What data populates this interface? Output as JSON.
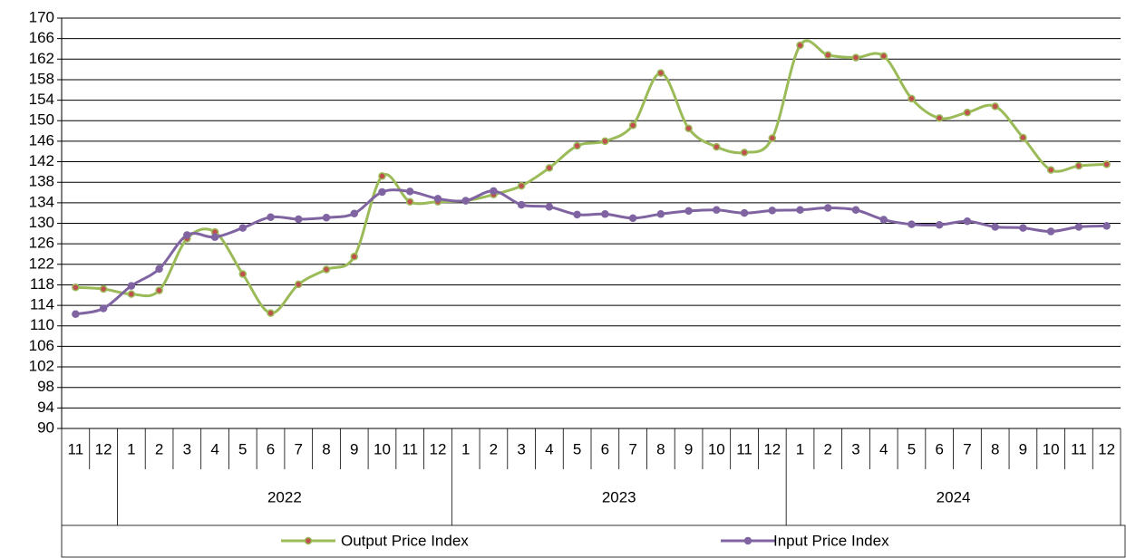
{
  "chart_data": {
    "type": "line",
    "categories": [
      "11",
      "12",
      "1",
      "2",
      "3",
      "4",
      "5",
      "6",
      "7",
      "8",
      "9",
      "10",
      "11",
      "12",
      "1",
      "2",
      "3",
      "4",
      "5",
      "6",
      "7",
      "8",
      "9",
      "10",
      "11",
      "12",
      "1",
      "2",
      "3",
      "4",
      "5",
      "6",
      "7",
      "8",
      "9",
      "10",
      "11",
      "12"
    ],
    "category_groups": [
      {
        "label": null,
        "size": 2
      },
      {
        "label": "2022",
        "size": 12
      },
      {
        "label": "2023",
        "size": 12
      },
      {
        "label": "2024",
        "size": 12
      }
    ],
    "series": [
      {
        "name": "Output Price Index",
        "color": "#9bbb59",
        "marker_color": "#c0504d",
        "values": [
          117.5,
          117.2,
          116.2,
          116.9,
          127.0,
          128.3,
          120.1,
          112.5,
          118.1,
          121.0,
          123.5,
          139.2,
          134.2,
          134.2,
          134.4,
          135.6,
          137.3,
          140.8,
          145.1,
          146.0,
          149.1,
          159.3,
          148.5,
          144.9,
          143.8,
          146.6,
          164.7,
          162.8,
          162.3,
          162.6,
          154.3,
          150.5,
          151.6,
          152.8,
          146.7,
          140.4,
          141.2,
          141.5
        ]
      },
      {
        "name": "Input Price Index",
        "color": "#8064a2",
        "marker_color": "#8064a2",
        "values": [
          112.3,
          113.4,
          117.8,
          121.1,
          127.7,
          127.3,
          129.1,
          131.2,
          130.8,
          131.1,
          131.9,
          136.1,
          136.2,
          134.8,
          134.4,
          136.3,
          133.6,
          133.2,
          131.7,
          131.8,
          131.0,
          131.8,
          132.4,
          132.6,
          132.0,
          132.5,
          132.6,
          133.0,
          132.6,
          130.7,
          129.8,
          129.7,
          130.4,
          129.3,
          129.1,
          128.4,
          129.3,
          129.5
        ]
      }
    ],
    "ylim": [
      90,
      170
    ],
    "yticks": [
      90,
      94,
      98,
      102,
      106,
      110,
      114,
      118,
      122,
      126,
      130,
      134,
      138,
      142,
      146,
      150,
      154,
      158,
      162,
      166,
      170
    ],
    "grid": true,
    "smooth": true,
    "legend": "bottom"
  }
}
